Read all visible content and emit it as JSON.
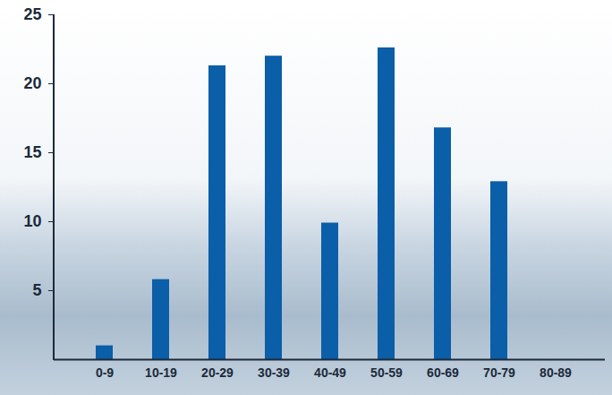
{
  "chart_data": {
    "type": "bar",
    "categories": [
      "0-9",
      "10-19",
      "20-29",
      "30-39",
      "40-49",
      "50-59",
      "60-69",
      "70-79",
      "80-89"
    ],
    "values": [
      1,
      5.8,
      21.3,
      22,
      9.9,
      22.6,
      16.8,
      12.9,
      0
    ],
    "color": "#0b5ea8",
    "ylim": [
      0,
      25
    ],
    "yticks": [
      5,
      10,
      15,
      20,
      25
    ],
    "grid": false
  }
}
